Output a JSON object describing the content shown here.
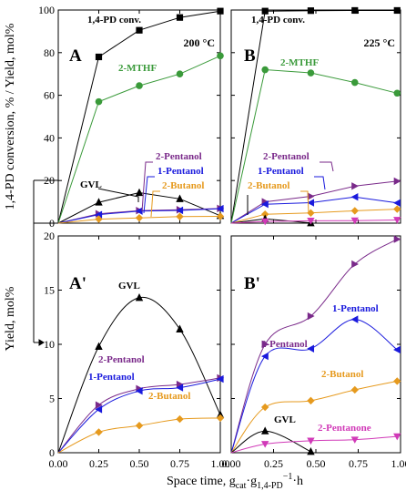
{
  "x_axis_label": {
    "main": "Space time, g",
    "sub1": "cat",
    "mid": "·g",
    "sub2": "1,4-PD",
    "sup": "−1",
    "tail": "·h"
  },
  "y_axis_label_top": "1,4-PD conversion, % / Yield, mol%",
  "y_axis_label_bottom": "Yield, mol%",
  "x_ticks": [
    "0.00",
    "0.25",
    "0.50",
    "0.75",
    "1.00"
  ],
  "y_ticks_top": [
    "0",
    "20",
    "40",
    "60",
    "80",
    "100"
  ],
  "y_ticks_bottom": [
    "0",
    "5",
    "10",
    "15",
    "20"
  ],
  "chart_data": [
    {
      "panel": "A",
      "type": "line",
      "temperature": "200 °C",
      "xlim": [
        0,
        1.0
      ],
      "ylim": [
        0,
        100
      ],
      "series": [
        {
          "name": "1,4-PD conv.",
          "color": "#000000",
          "marker": "square",
          "x": [
            0,
            0.25,
            0.5,
            0.75,
            1.0
          ],
          "y": [
            0,
            78,
            90.5,
            96.5,
            99.5
          ]
        },
        {
          "name": "2-MTHF",
          "color": "#3a9a3a",
          "marker": "circle",
          "x": [
            0,
            0.25,
            0.5,
            0.75,
            1.0
          ],
          "y": [
            0,
            57,
            64.5,
            70,
            78.5
          ]
        },
        {
          "name": "GVL",
          "color": "#000000",
          "marker": "triangle-up",
          "x": [
            0,
            0.25,
            0.5,
            0.75,
            1.0
          ],
          "y": [
            0,
            9.8,
            14.3,
            11.4,
            3.5
          ]
        },
        {
          "name": "2-Pentanol",
          "color": "#7a2a8a",
          "marker": "triangle-right",
          "x": [
            0,
            0.25,
            0.5,
            0.75,
            1.0
          ],
          "y": [
            0,
            4.4,
            5.9,
            6.3,
            6.9
          ]
        },
        {
          "name": "1-Pentanol",
          "color": "#1a1add",
          "marker": "triangle-left",
          "x": [
            0,
            0.25,
            0.5,
            0.75,
            1.0
          ],
          "y": [
            0,
            4.0,
            5.7,
            6.0,
            6.8
          ]
        },
        {
          "name": "2-Butanol",
          "color": "#e69a1e",
          "marker": "diamond",
          "x": [
            0,
            0.25,
            0.5,
            0.75,
            1.0
          ],
          "y": [
            0,
            1.9,
            2.5,
            3.1,
            3.2
          ]
        }
      ]
    },
    {
      "panel": "B",
      "type": "line",
      "temperature": "225 °C",
      "xlim": [
        0,
        1.0
      ],
      "ylim": [
        0,
        100
      ],
      "series": [
        {
          "name": "1,4-PD conv.",
          "color": "#000000",
          "marker": "square",
          "x": [
            0,
            0.2,
            0.47,
            0.73,
            0.98
          ],
          "y": [
            0,
            99.5,
            99.7,
            99.8,
            99.8
          ]
        },
        {
          "name": "2-MTHF",
          "color": "#3a9a3a",
          "marker": "circle",
          "x": [
            0,
            0.2,
            0.47,
            0.73,
            0.98
          ],
          "y": [
            0,
            72,
            70.5,
            66,
            61
          ]
        },
        {
          "name": "2-Pentanol",
          "color": "#7a2a8a",
          "marker": "triangle-right",
          "x": [
            0,
            0.2,
            0.47,
            0.73,
            0.98
          ],
          "y": [
            0,
            10,
            12.6,
            17.4,
            19.7
          ]
        },
        {
          "name": "1-Pentanol",
          "color": "#1a1add",
          "marker": "triangle-left",
          "x": [
            0,
            0.2,
            0.47,
            0.73,
            0.98
          ],
          "y": [
            0,
            8.9,
            9.6,
            12.3,
            9.5
          ]
        },
        {
          "name": "2-Butanol",
          "color": "#e69a1e",
          "marker": "diamond",
          "x": [
            0,
            0.2,
            0.47,
            0.73,
            0.98
          ],
          "y": [
            0,
            4.2,
            4.8,
            5.8,
            6.6
          ]
        },
        {
          "name": "GVL",
          "color": "#000000",
          "marker": "triangle-up",
          "x": [
            0,
            0.2,
            0.47
          ],
          "y": [
            0,
            2.0,
            0.1
          ]
        },
        {
          "name": "2-Pentanone",
          "color": "#d13ab8",
          "marker": "triangle-down",
          "x": [
            0,
            0.2,
            0.47,
            0.73,
            0.98
          ],
          "y": [
            0,
            0.8,
            1.1,
            1.2,
            1.5
          ]
        }
      ]
    },
    {
      "panel": "A'",
      "type": "line",
      "xlim": [
        0,
        1.0
      ],
      "ylim": [
        0,
        20
      ],
      "series": [
        {
          "name": "GVL",
          "color": "#000000",
          "marker": "triangle-up",
          "x": [
            0,
            0.25,
            0.5,
            0.75,
            1.0
          ],
          "y": [
            0,
            9.8,
            14.3,
            11.4,
            3.5
          ]
        },
        {
          "name": "2-Pentanol",
          "color": "#7a2a8a",
          "marker": "triangle-right",
          "x": [
            0,
            0.25,
            0.5,
            0.75,
            1.0
          ],
          "y": [
            0,
            4.4,
            5.9,
            6.3,
            6.9
          ]
        },
        {
          "name": "1-Pentanol",
          "color": "#1a1add",
          "marker": "triangle-left",
          "x": [
            0,
            0.25,
            0.5,
            0.75,
            1.0
          ],
          "y": [
            0,
            4.0,
            5.7,
            6.0,
            6.8
          ]
        },
        {
          "name": "2-Butanol",
          "color": "#e69a1e",
          "marker": "diamond",
          "x": [
            0,
            0.25,
            0.5,
            0.75,
            1.0
          ],
          "y": [
            0,
            1.9,
            2.5,
            3.1,
            3.2
          ]
        }
      ]
    },
    {
      "panel": "B'",
      "type": "line",
      "xlim": [
        0,
        1.0
      ],
      "ylim": [
        0,
        20
      ],
      "series": [
        {
          "name": "2-Pentanol",
          "color": "#7a2a8a",
          "marker": "triangle-right",
          "x": [
            0,
            0.2,
            0.47,
            0.73,
            0.98
          ],
          "y": [
            0,
            10,
            12.6,
            17.4,
            19.7
          ]
        },
        {
          "name": "1-Pentanol",
          "color": "#1a1add",
          "marker": "triangle-left",
          "x": [
            0,
            0.2,
            0.47,
            0.73,
            0.98
          ],
          "y": [
            0,
            8.9,
            9.6,
            12.3,
            9.5
          ]
        },
        {
          "name": "2-Butanol",
          "color": "#e69a1e",
          "marker": "diamond",
          "x": [
            0,
            0.2,
            0.47,
            0.73,
            0.98
          ],
          "y": [
            0,
            4.2,
            4.8,
            5.8,
            6.6
          ]
        },
        {
          "name": "GVL",
          "color": "#000000",
          "marker": "triangle-up",
          "x": [
            0,
            0.2,
            0.47
          ],
          "y": [
            0,
            2.0,
            0.1
          ]
        },
        {
          "name": "2-Pentanone",
          "color": "#d13ab8",
          "marker": "triangle-down",
          "x": [
            0,
            0.2,
            0.47,
            0.73,
            0.98
          ],
          "y": [
            0,
            0.8,
            1.1,
            1.2,
            1.5
          ]
        }
      ]
    }
  ]
}
